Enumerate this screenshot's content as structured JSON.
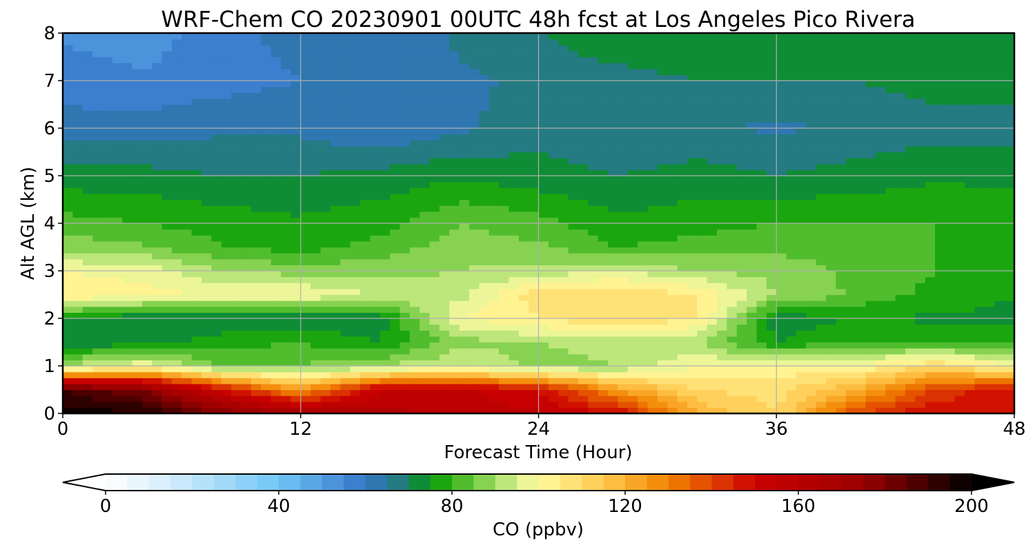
{
  "chart_data": {
    "type": "heatmap",
    "title": "WRF-Chem CO  20230901 00UTC 48h fcst at Los Angeles Pico Rivera",
    "xlabel": "Forecast Time (Hour)",
    "ylabel": "Alt AGL (km)",
    "xlim": [
      0,
      48
    ],
    "ylim": [
      0,
      8
    ],
    "x_ticks": [
      0,
      12,
      24,
      36,
      48
    ],
    "y_ticks": [
      0,
      1,
      2,
      3,
      4,
      5,
      6,
      7,
      8
    ],
    "grid": true,
    "x": [
      0,
      4,
      8,
      12,
      16,
      20,
      24,
      28,
      32,
      36,
      40,
      44,
      48
    ],
    "y": [
      0,
      0.5,
      1,
      1.5,
      2,
      2.5,
      3,
      3.5,
      4,
      5,
      6,
      7,
      8
    ],
    "z": [
      [
        198,
        196,
        180,
        170,
        162,
        158,
        156,
        150,
        120,
        110,
        140,
        150,
        150
      ],
      [
        190,
        180,
        150,
        125,
        155,
        156,
        150,
        125,
        110,
        108,
        120,
        140,
        150
      ],
      [
        90,
        100,
        85,
        85,
        90,
        95,
        88,
        90,
        100,
        102,
        100,
        110,
        100
      ],
      [
        72,
        72,
        78,
        80,
        75,
        88,
        90,
        92,
        90,
        75,
        80,
        80,
        78
      ],
      [
        75,
        70,
        70,
        70,
        72,
        100,
        105,
        110,
        105,
        72,
        75,
        74,
        74
      ],
      [
        105,
        102,
        100,
        100,
        95,
        93,
        108,
        110,
        105,
        90,
        84,
        78,
        75
      ],
      [
        100,
        98,
        90,
        88,
        88,
        90,
        92,
        95,
        90,
        88,
        84,
        80,
        76
      ],
      [
        88,
        86,
        80,
        78,
        82,
        88,
        86,
        80,
        82,
        84,
        82,
        80,
        78
      ],
      [
        82,
        80,
        78,
        76,
        78,
        85,
        82,
        76,
        78,
        80,
        80,
        80,
        78
      ],
      [
        72,
        72,
        70,
        70,
        72,
        74,
        72,
        70,
        72,
        70,
        72,
        74,
        74
      ],
      [
        62,
        62,
        64,
        64,
        60,
        64,
        68,
        66,
        66,
        64,
        66,
        68,
        68
      ],
      [
        58,
        56,
        58,
        60,
        60,
        64,
        66,
        68,
        70,
        70,
        70,
        72,
        72
      ],
      [
        54,
        52,
        58,
        62,
        60,
        66,
        70,
        74,
        74,
        74,
        74,
        74,
        72
      ]
    ],
    "colorbar": {
      "label": "CO  (ppbv)",
      "min": 0,
      "max": 200,
      "ticks": [
        0,
        40,
        80,
        120,
        160,
        200
      ],
      "extend": "both",
      "colors": [
        "#ffffff",
        "#d4ecfb",
        "#6fc6f7",
        "#3575c8",
        "#1e7d6b",
        "#009a00",
        "#6cc83c",
        "#d8f090",
        "#fffca0",
        "#ffc84e",
        "#f28400",
        "#cc0000",
        "#9a0000",
        "#000000"
      ],
      "stops": [
        0,
        15,
        40,
        60,
        70,
        75,
        85,
        95,
        100,
        115,
        130,
        150,
        175,
        200
      ]
    }
  }
}
